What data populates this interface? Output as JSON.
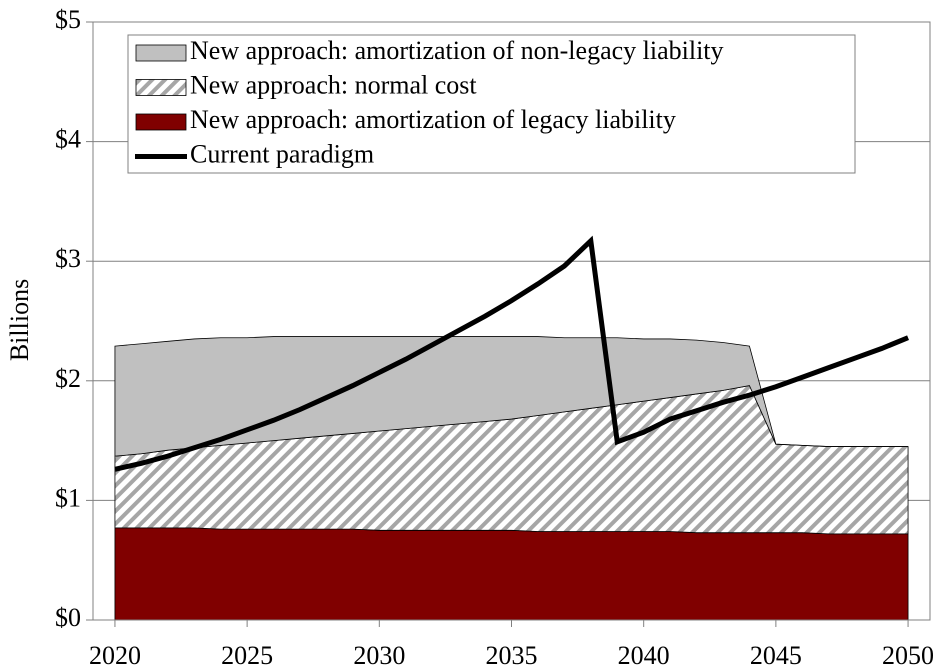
{
  "chart_data": {
    "type": "stacked-area-line",
    "y_label": "Billions",
    "x": [
      2020,
      2021,
      2022,
      2023,
      2024,
      2025,
      2026,
      2027,
      2028,
      2029,
      2030,
      2031,
      2032,
      2033,
      2034,
      2035,
      2036,
      2037,
      2038,
      2039,
      2040,
      2041,
      2042,
      2043,
      2044,
      2045,
      2046,
      2047,
      2048,
      2049,
      2050
    ],
    "xlim": [
      2019.17,
      2050.83
    ],
    "xticks": [
      2020,
      2025,
      2030,
      2035,
      2040,
      2045,
      2050
    ],
    "ylim": [
      0,
      5
    ],
    "yticks": [
      {
        "value": 0,
        "label": "$0"
      },
      {
        "value": 1,
        "label": "$1"
      },
      {
        "value": 2,
        "label": "$2"
      },
      {
        "value": 3,
        "label": "$3"
      },
      {
        "value": 4,
        "label": "$4"
      },
      {
        "value": 5,
        "label": "$5"
      }
    ],
    "grid": true,
    "legend_position": "top",
    "series": [
      {
        "name": "New approach: amortization of legacy liability",
        "kind": "area",
        "color": "#800000",
        "values": [
          0.77,
          0.77,
          0.77,
          0.77,
          0.76,
          0.76,
          0.76,
          0.76,
          0.76,
          0.76,
          0.75,
          0.75,
          0.75,
          0.75,
          0.75,
          0.75,
          0.74,
          0.74,
          0.74,
          0.74,
          0.74,
          0.74,
          0.73,
          0.73,
          0.73,
          0.73,
          0.73,
          0.72,
          0.72,
          0.72,
          0.72
        ]
      },
      {
        "name": "New approach: normal cost",
        "kind": "hatched-area",
        "color": "#a6a6a6",
        "values": [
          0.6,
          0.62,
          0.65,
          0.67,
          0.7,
          0.72,
          0.74,
          0.76,
          0.78,
          0.8,
          0.83,
          0.85,
          0.87,
          0.89,
          0.91,
          0.93,
          0.97,
          1.0,
          1.03,
          1.06,
          1.09,
          1.12,
          1.16,
          1.19,
          1.23,
          0.74,
          0.73,
          0.73,
          0.73,
          0.73,
          0.73
        ]
      },
      {
        "name": "New approach: amortization of non-legacy liability",
        "kind": "area",
        "color": "#c0c0c0",
        "values": [
          0.92,
          0.92,
          0.91,
          0.91,
          0.9,
          0.88,
          0.87,
          0.85,
          0.83,
          0.81,
          0.79,
          0.77,
          0.75,
          0.73,
          0.71,
          0.69,
          0.66,
          0.62,
          0.59,
          0.56,
          0.52,
          0.49,
          0.45,
          0.4,
          0.33,
          0,
          0,
          0,
          0,
          0,
          0
        ]
      },
      {
        "name": "Current paradigm",
        "kind": "line",
        "color": "#000000",
        "values": [
          1.26,
          1.31,
          1.37,
          1.44,
          1.51,
          1.59,
          1.67,
          1.76,
          1.86,
          1.96,
          2.07,
          2.18,
          2.3,
          2.42,
          2.54,
          2.67,
          2.81,
          2.96,
          3.17,
          1.49,
          1.57,
          1.68,
          1.75,
          1.82,
          1.88,
          1.95,
          2.03,
          2.11,
          2.19,
          2.27,
          2.36
        ]
      }
    ]
  }
}
